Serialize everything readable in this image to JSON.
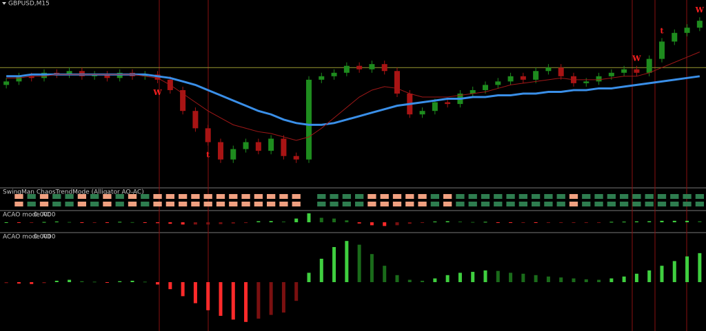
{
  "chart_data": [
    {
      "type": "candlestick",
      "title": "GBPUSD,M15",
      "open": [
        55,
        57,
        60,
        59,
        62,
        61,
        63,
        60,
        61,
        59,
        62,
        60,
        61,
        58,
        52,
        40,
        30,
        22,
        12,
        18,
        22,
        17,
        24,
        14,
        12,
        58,
        60,
        62,
        66,
        64,
        67,
        63,
        50,
        38,
        40,
        45,
        44,
        50,
        52,
        55,
        57,
        60,
        58,
        63,
        65,
        60,
        56,
        57,
        60,
        62,
        64,
        62,
        70,
        80,
        85,
        88
      ],
      "high": [
        59,
        62,
        62,
        64,
        64,
        65,
        65,
        63,
        63,
        64,
        64,
        63,
        63,
        60,
        54,
        42,
        32,
        24,
        20,
        24,
        24,
        26,
        26,
        16,
        60,
        62,
        64,
        68,
        68,
        69,
        69,
        65,
        52,
        42,
        47,
        47,
        52,
        54,
        57,
        59,
        62,
        62,
        65,
        67,
        67,
        62,
        59,
        62,
        64,
        66,
        66,
        72,
        82,
        87,
        90,
        94
      ],
      "low": [
        53,
        55,
        57,
        57,
        59,
        59,
        58,
        58,
        57,
        57,
        58,
        58,
        56,
        50,
        38,
        28,
        20,
        10,
        10,
        16,
        15,
        15,
        12,
        10,
        10,
        56,
        58,
        60,
        62,
        62,
        61,
        48,
        36,
        36,
        38,
        42,
        42,
        48,
        50,
        53,
        55,
        56,
        56,
        61,
        58,
        54,
        54,
        55,
        58,
        60,
        60,
        60,
        68,
        78,
        83,
        86
      ],
      "close": [
        57,
        60,
        59,
        62,
        61,
        63,
        60,
        61,
        59,
        62,
        60,
        61,
        58,
        52,
        40,
        30,
        22,
        12,
        18,
        22,
        17,
        24,
        14,
        12,
        58,
        60,
        62,
        66,
        64,
        67,
        63,
        50,
        38,
        40,
        45,
        44,
        50,
        52,
        55,
        57,
        60,
        58,
        63,
        65,
        60,
        56,
        57,
        60,
        62,
        64,
        62,
        70,
        80,
        85,
        88,
        92
      ],
      "ylim": [
        0,
        100
      ],
      "up_color": "#1e8c1e",
      "down_color": "#a81414",
      "lines": [
        {
          "color": "#3a8fe8",
          "values": [
            60,
            60,
            61,
            61,
            61,
            61,
            61,
            61,
            61,
            61,
            61,
            61,
            60,
            59,
            57,
            55,
            52,
            49,
            46,
            43,
            40,
            38,
            35,
            33,
            32,
            32,
            33,
            35,
            37,
            39,
            41,
            43,
            44,
            45,
            46,
            47,
            47,
            48,
            48,
            49,
            49,
            50,
            50,
            51,
            51,
            52,
            52,
            53,
            53,
            54,
            55,
            56,
            57,
            58,
            59,
            60
          ]
        },
        {
          "color": "#a01818",
          "values": [
            59,
            59,
            60,
            60,
            61,
            61,
            61,
            61,
            61,
            61,
            61,
            60,
            59,
            55,
            50,
            45,
            40,
            36,
            32,
            30,
            28,
            27,
            25,
            23,
            25,
            30,
            36,
            42,
            48,
            52,
            54,
            53,
            50,
            48,
            48,
            48,
            49,
            50,
            51,
            53,
            55,
            56,
            57,
            58,
            59,
            58,
            58,
            58,
            59,
            60,
            60,
            62,
            65,
            68,
            71,
            74
          ]
        }
      ],
      "level": 65,
      "level_color": "#9a9a30",
      "signals": [
        {
          "label": "W",
          "index": 12,
          "position": "below"
        },
        {
          "label": "t",
          "index": 16,
          "position": "below"
        },
        {
          "label": "W",
          "index": 50,
          "position": "above"
        },
        {
          "label": "t",
          "index": 52,
          "position": "above"
        },
        {
          "label": "W",
          "index": 55,
          "position": "above"
        }
      ]
    },
    {
      "type": "state",
      "title": "SwingMan ChaosTrendMode (Alligator AO-AC)",
      "values": [
        0,
        -1,
        1,
        -1,
        1,
        1,
        -1,
        1,
        -1,
        1,
        -1,
        1,
        -1,
        -1,
        -1,
        -1,
        -1,
        -1,
        -1,
        -1,
        -1,
        -1,
        -1,
        -1,
        0,
        1,
        1,
        1,
        1,
        -1,
        -1,
        -1,
        -1,
        -1,
        1,
        -1,
        1,
        1,
        1,
        1,
        1,
        1,
        1,
        1,
        1,
        -1,
        1,
        1,
        1,
        1,
        1,
        1,
        1,
        1,
        1,
        1
      ],
      "up_color": "#2e7d4f",
      "down_color": "#f0a080"
    },
    {
      "type": "histogram",
      "title": "ACAO mode AC",
      "readout": "0.0000",
      "values": [
        0,
        -1,
        -1,
        2,
        5,
        2,
        -3,
        -1,
        -2,
        3,
        1,
        -2,
        -6,
        -10,
        -15,
        -15,
        -15,
        -12,
        -8,
        -5,
        7,
        8,
        5,
        25,
        60,
        30,
        25,
        13,
        -8,
        -20,
        -25,
        -20,
        -10,
        -2,
        5,
        7,
        5,
        2,
        3,
        -1,
        -4,
        -2,
        -3,
        -3,
        -2,
        -2,
        -2,
        -1,
        3,
        4,
        6,
        7,
        10,
        10,
        10,
        7
      ],
      "ylim": [
        -60,
        60
      ]
    },
    {
      "type": "histogram",
      "title": "ACAO mode AO",
      "readout": "0.0000",
      "values": [
        -2,
        -3,
        -4,
        -2,
        3,
        5,
        2,
        1,
        -1,
        2,
        3,
        1,
        -5,
        -15,
        -30,
        -45,
        -60,
        -72,
        -80,
        -85,
        -78,
        -70,
        -65,
        -40,
        20,
        50,
        75,
        88,
        80,
        60,
        35,
        15,
        5,
        3,
        8,
        15,
        20,
        22,
        25,
        24,
        20,
        18,
        15,
        12,
        10,
        8,
        6,
        5,
        8,
        12,
        18,
        25,
        35,
        45,
        55,
        62
      ],
      "ylim": [
        -100,
        100
      ]
    }
  ]
}
